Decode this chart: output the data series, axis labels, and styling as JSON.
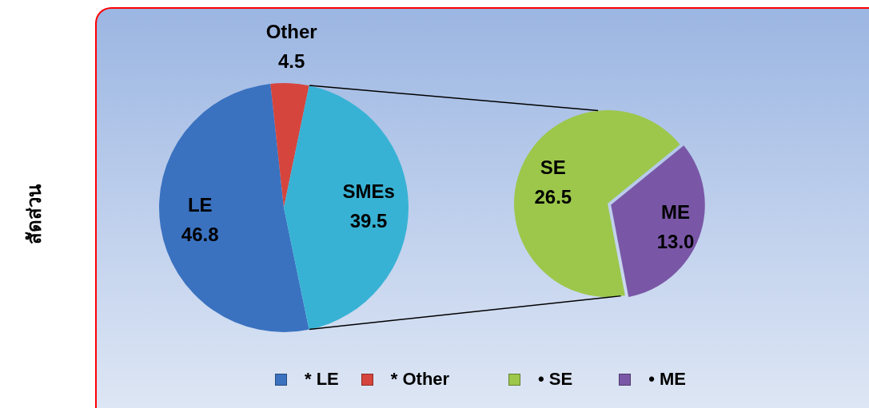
{
  "chart_data": [
    {
      "type": "pie",
      "ylabel": "สัดส่วน",
      "categories": [
        "* LE",
        "* Other",
        null
      ],
      "values": [
        46.8,
        4.5,
        39.5
      ],
      "colors": [
        "#3a72c0",
        "#d6453d",
        "#38b2d4"
      ],
      "value_labels": [
        "LE\n46.8",
        "Other\n4.5",
        "SMEs\n39.5"
      ],
      "legend": "bottom"
    },
    {
      "type": "pie",
      "categories": [
        "• SE",
        "• ME"
      ],
      "values": [
        26.5,
        13.0
      ],
      "colors": [
        "#9cc74b",
        "#7a57a6"
      ],
      "value_labels": [
        "SE\n26.5",
        "ME\n13.0"
      ],
      "legend": "bottom"
    }
  ]
}
